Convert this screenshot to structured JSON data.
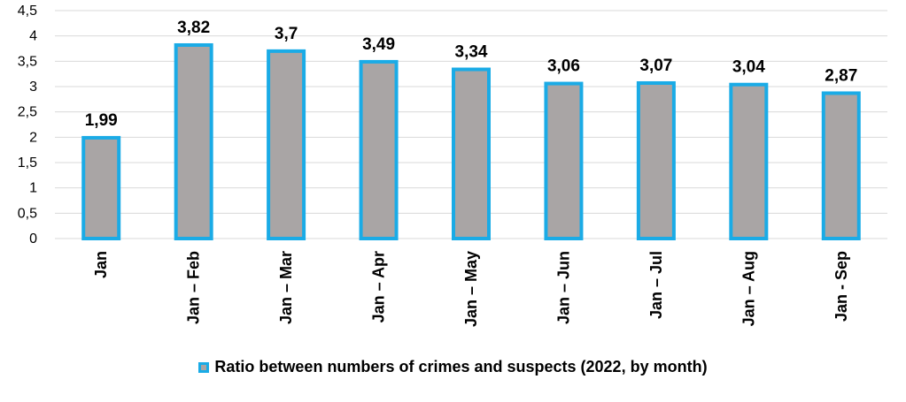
{
  "chart_data": {
    "type": "bar",
    "categories": [
      "Jan",
      "Jan – Feb",
      "Jan – Mar",
      "Jan – Apr",
      "Jan – May",
      "Jan – Jun",
      "Jan – Jul",
      "Jan – Aug",
      "Jan - Sep"
    ],
    "values": [
      1.99,
      3.82,
      3.7,
      3.49,
      3.34,
      3.06,
      3.07,
      3.04,
      2.87
    ],
    "value_labels": [
      "1,99",
      "3,82",
      "3,7",
      "3,49",
      "3,34",
      "3,06",
      "3,07",
      "3,04",
      "2,87"
    ],
    "series": [
      {
        "name": "Ratio between numbers of crimes and suspects (2022, by month)",
        "values": [
          1.99,
          3.82,
          3.7,
          3.49,
          3.34,
          3.06,
          3.07,
          3.04,
          2.87
        ]
      }
    ],
    "ylim": [
      0,
      4.5
    ],
    "yticks": [
      0,
      0.5,
      1,
      1.5,
      2,
      2.5,
      3,
      3.5,
      4,
      4.5
    ],
    "ytick_labels": [
      "0",
      "0,5",
      "1",
      "1,5",
      "2",
      "2,5",
      "3",
      "3,5",
      "4",
      "4,5"
    ],
    "grid": true,
    "legend_position": "bottom",
    "colors": {
      "bar_fill": "#a9a5a5",
      "bar_border": "#1aabe6",
      "grid": "#d9d9d9"
    }
  },
  "legend": {
    "label": "Ratio between numbers of crimes and suspects (2022, by month)"
  }
}
